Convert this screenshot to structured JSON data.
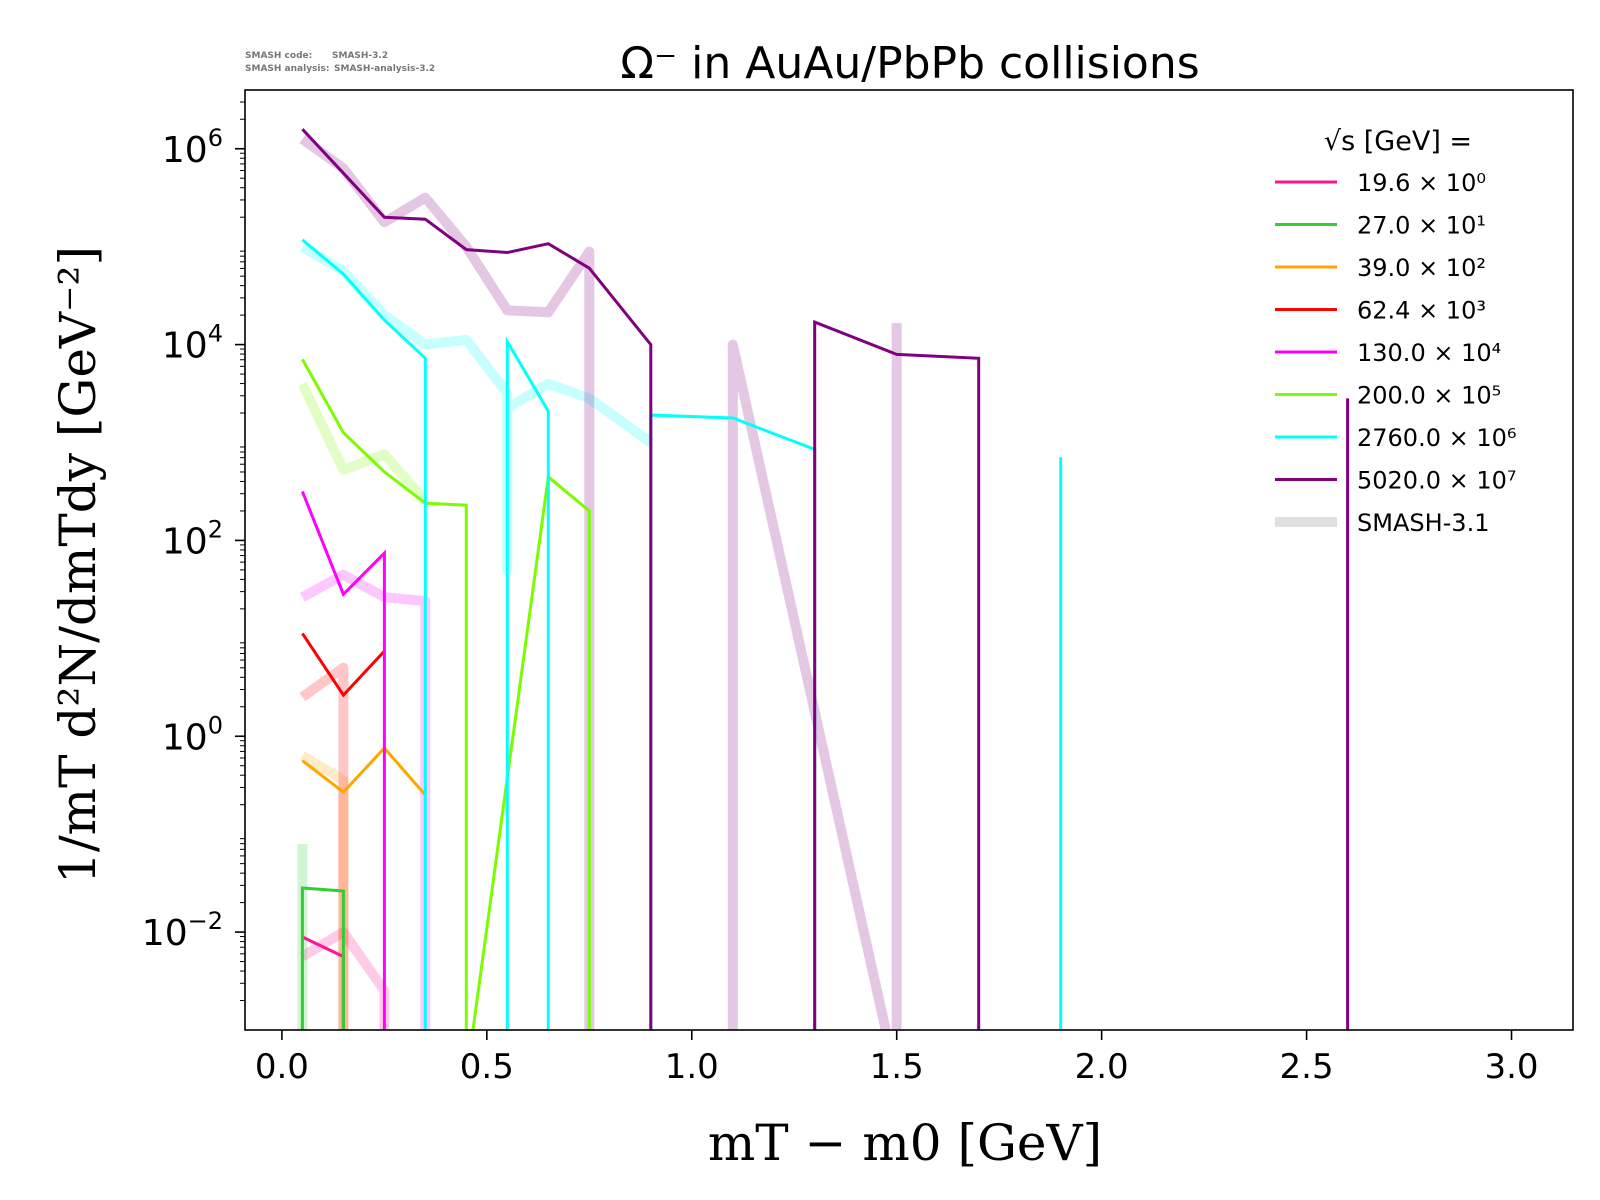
{
  "meta": {
    "code_label": "SMASH code:",
    "code_value": "SMASH-3.2",
    "analysis_label": "SMASH analysis:",
    "analysis_value": "SMASH-analysis-3.2"
  },
  "chart_data": {
    "type": "line",
    "title": "Ω⁻ in AuAu/PbPb collisions",
    "xlabel": "mT − m0 [GeV]",
    "ylabel": "1/mT d²N/dmTdy [GeV⁻²]",
    "xlim": [
      -0.09,
      3.15
    ],
    "ylim_log10": [
      -3.0,
      6.6
    ],
    "yscale": "log",
    "grid": false,
    "x_ticks": [
      "0.0",
      "0.5",
      "1.0",
      "1.5",
      "2.0",
      "2.5",
      "3.0"
    ],
    "y_ticks": [
      {
        "base": "10",
        "exp": "−2",
        "log": -2
      },
      {
        "base": "10",
        "exp": "0",
        "log": 0
      },
      {
        "base": "10",
        "exp": "2",
        "log": 2
      },
      {
        "base": "10",
        "exp": "4",
        "log": 4
      },
      {
        "base": "10",
        "exp": "6",
        "log": 6
      }
    ],
    "legend": {
      "title": "√s [GeV] =",
      "placement": "top-right",
      "entries": [
        {
          "label": "19.6 × 10⁰"
        },
        {
          "label": "27.0 × 10¹"
        },
        {
          "label": "39.0 × 10²"
        },
        {
          "label": "62.4 × 10³"
        },
        {
          "label": "130.0 × 10⁴"
        },
        {
          "label": "200.0 × 10⁵"
        },
        {
          "label": "2760.0 × 10⁶"
        },
        {
          "label": "5020.0 × 10⁷"
        },
        {
          "label": "SMASH-3.1"
        }
      ]
    },
    "series": [
      {
        "color": "#ff1493",
        "x": [
          0.05,
          0.15,
          0.15
        ],
        "y_log10": [
          -2.05,
          -2.25,
          -3.5
        ]
      },
      {
        "color": "#32cd32",
        "x": [
          0.05,
          0.05,
          0.15,
          0.15
        ],
        "y_log10": [
          -3.5,
          -1.55,
          -1.58,
          -3.5
        ]
      },
      {
        "color": "#ffa500",
        "x": [
          0.05,
          0.15,
          0.25,
          0.35
        ],
        "y_log10": [
          -0.25,
          -0.57,
          -0.12,
          -0.6
        ]
      },
      {
        "color": "#ff0000",
        "x": [
          0.05,
          0.15,
          0.25
        ],
        "y_log10": [
          1.05,
          0.42,
          0.87
        ]
      },
      {
        "color": "#ff00ff",
        "x": [
          0.05,
          0.15,
          0.25,
          0.25
        ],
        "y_log10": [
          2.5,
          1.45,
          1.87,
          -3.5
        ]
      },
      {
        "color": "#7cfc00",
        "x": [
          0.05,
          0.15,
          0.25,
          0.35,
          0.45,
          0.45,
          0.65,
          0.75,
          0.75
        ],
        "y_log10": [
          3.85,
          3.1,
          2.7,
          2.38,
          2.36,
          -3.5,
          2.65,
          2.3,
          -3.5
        ]
      },
      {
        "color": "#00ffff",
        "x": [
          0.05,
          0.15,
          0.25,
          0.35,
          0.35,
          0.55,
          0.55,
          0.65,
          0.65,
          0.9,
          0.9,
          1.1,
          1.3,
          1.3,
          1.9,
          1.9
        ],
        "y_log10": [
          5.07,
          4.72,
          4.25,
          3.86,
          -3.5,
          -3.5,
          4.03,
          3.32,
          -3.5,
          -3.5,
          3.28,
          3.25,
          2.93,
          -3.5,
          -3.5,
          2.85
        ]
      },
      {
        "color": "#800080",
        "x": [
          0.05,
          0.15,
          0.25,
          0.35,
          0.45,
          0.55,
          0.65,
          0.75,
          0.9,
          0.9,
          1.3,
          1.3,
          1.5,
          1.7,
          1.7,
          2.6,
          2.6
        ],
        "y_log10": [
          6.2,
          5.75,
          5.3,
          5.28,
          4.97,
          4.94,
          5.03,
          4.78,
          4.0,
          -3.5,
          -3.5,
          4.23,
          3.9,
          3.86,
          -3.5,
          -3.5,
          3.45
        ]
      }
    ],
    "reference_series": [
      {
        "color": "#ff1493",
        "x": [
          0.05,
          0.15,
          0.25,
          0.25
        ],
        "y_log10": [
          -2.25,
          -2.0,
          -2.6,
          -3.5
        ]
      },
      {
        "color": "#32cd32",
        "x": [
          0.05,
          0.05
        ],
        "y_log10": [
          -1.1,
          -3.5
        ]
      },
      {
        "color": "#ffa500",
        "x": [
          0.05,
          0.15,
          0.15
        ],
        "y_log10": [
          -0.2,
          -0.45,
          -3.5
        ]
      },
      {
        "color": "#ff0000",
        "x": [
          0.05,
          0.15,
          0.15
        ],
        "y_log10": [
          0.4,
          0.7,
          -3.5
        ]
      },
      {
        "color": "#ff00ff",
        "x": [
          0.05,
          0.15,
          0.25,
          0.35,
          0.35
        ],
        "y_log10": [
          1.42,
          1.65,
          1.42,
          1.38,
          -3.5
        ]
      },
      {
        "color": "#7cfc00",
        "x": [
          0.05,
          0.15,
          0.25,
          0.35
        ],
        "y_log10": [
          3.6,
          2.72,
          2.88,
          2.4
        ]
      },
      {
        "color": "#00ffff",
        "x": [
          0.05,
          0.15,
          0.25,
          0.35,
          0.45,
          0.55,
          0.55,
          0.55,
          0.65,
          0.75,
          0.85,
          0.9
        ],
        "y_log10": [
          5.0,
          4.75,
          4.3,
          4.0,
          4.05,
          3.5,
          1.7,
          3.35,
          3.6,
          3.45,
          3.15,
          3.0
        ]
      },
      {
        "color": "#800080",
        "x": [
          0.05,
          0.15,
          0.25,
          0.35,
          0.45,
          0.55,
          0.65,
          0.75,
          0.75,
          1.1,
          1.1,
          1.5,
          1.5
        ],
        "y_log10": [
          6.1,
          5.8,
          5.25,
          5.5,
          5.0,
          4.35,
          4.33,
          4.95,
          -3.5,
          -3.5,
          4.0,
          -3.5,
          4.22
        ]
      }
    ]
  }
}
